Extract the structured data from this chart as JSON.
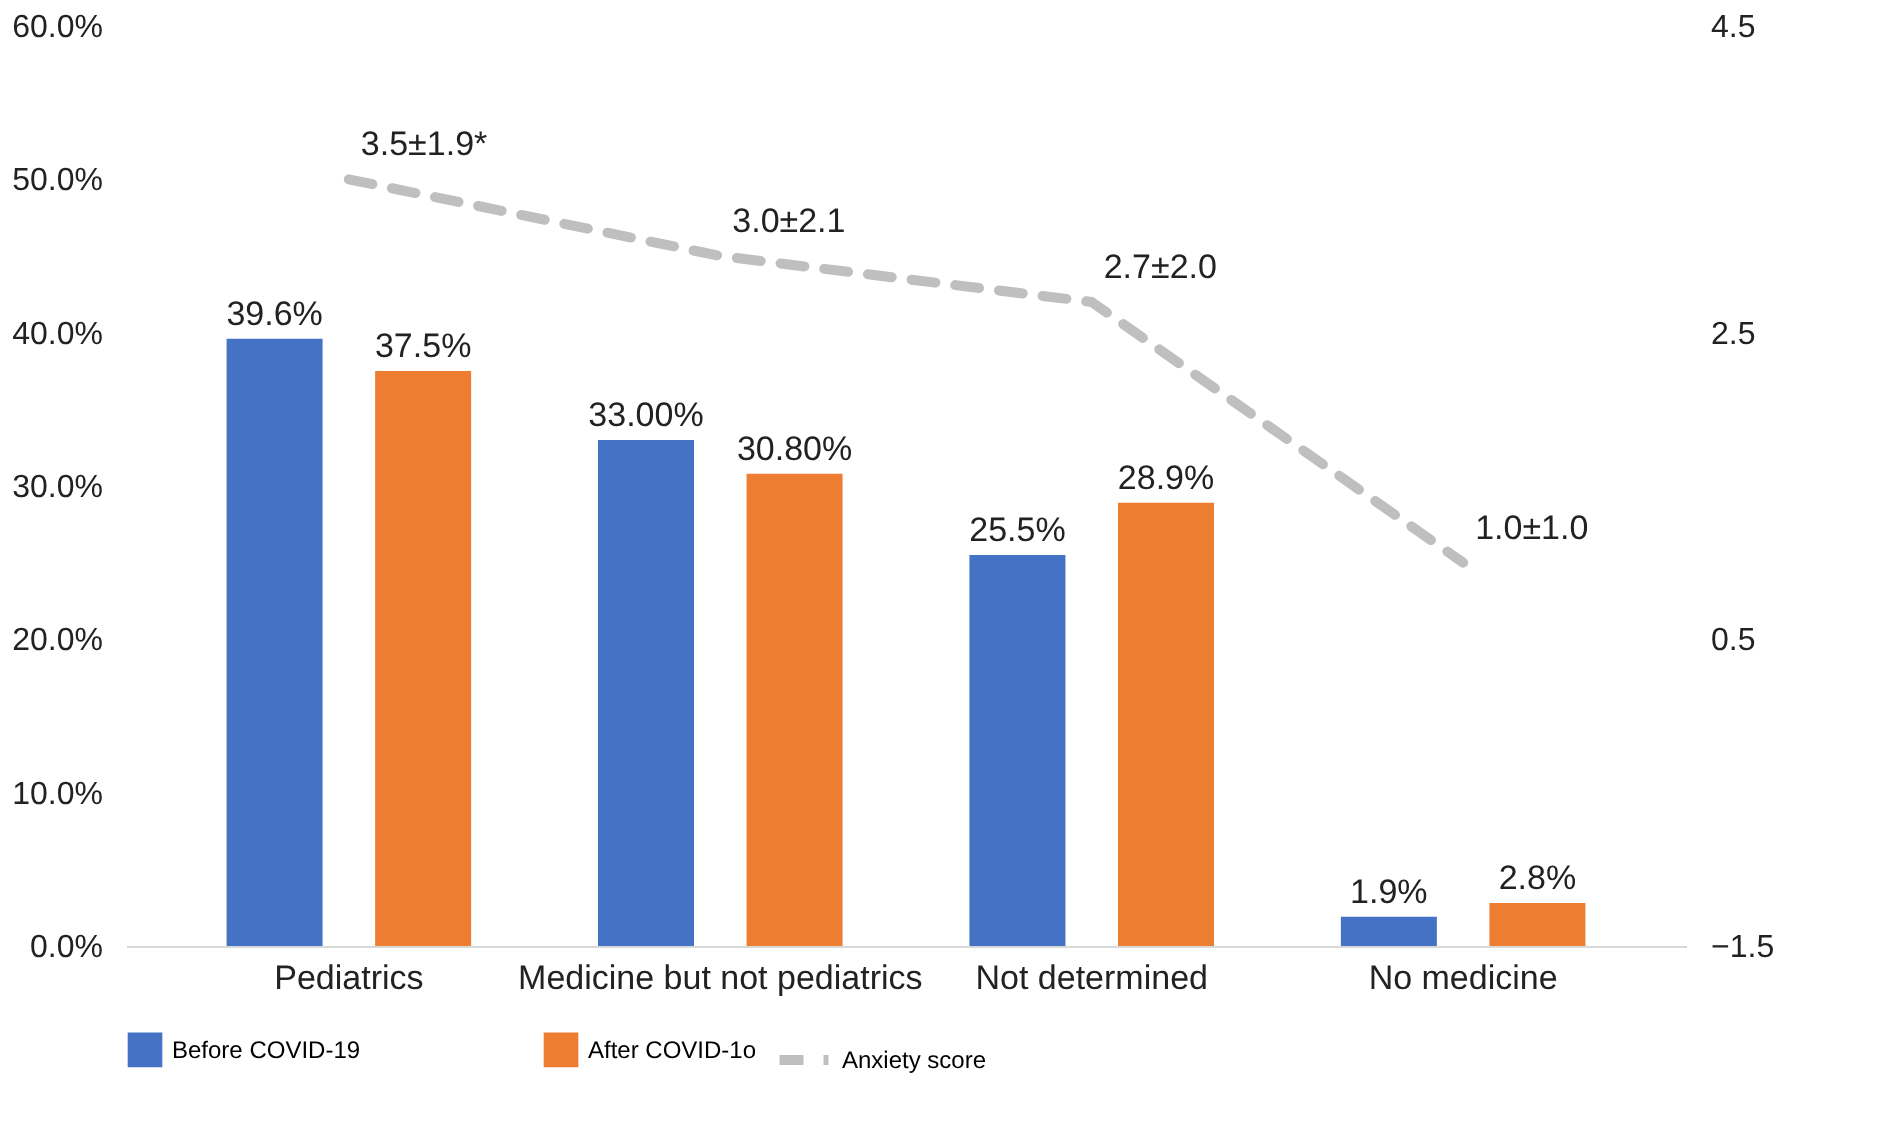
{
  "chart_data": {
    "type": "bar",
    "categories": [
      "Pediatrics",
      "Medicine but not pediatrics",
      "Not determined",
      "No medicine"
    ],
    "series": [
      {
        "name": "Before COVID-19",
        "color": "#4472c4",
        "values": [
          39.6,
          33.0,
          25.5,
          1.9
        ],
        "value_labels": [
          "39.6%",
          "33.00%",
          "25.5%",
          "1.9%"
        ]
      },
      {
        "name": "After COVID-1o",
        "color": "#ed7d31",
        "values": [
          37.5,
          30.8,
          28.9,
          2.8
        ],
        "value_labels": [
          "37.5%",
          "30.80%",
          "28.9%",
          "2.8%"
        ]
      },
      {
        "name": "Anxiety score",
        "type": "line",
        "axis": "y2",
        "color": "#bfbfbf",
        "line_style": "dashed",
        "values": [
          3.5,
          3.0,
          2.7,
          1.0
        ],
        "value_labels": [
          "3.5±1.9*",
          "3.0±2.1",
          "2.7±2.0",
          "1.0±1.0"
        ]
      }
    ],
    "ylim": [
      0,
      60
    ],
    "yticks": [
      {
        "value": 0,
        "label": "0.0%"
      },
      {
        "value": 10,
        "label": "10.0%"
      },
      {
        "value": 20,
        "label": "20.0%"
      },
      {
        "value": 30,
        "label": "30.0%"
      },
      {
        "value": 40,
        "label": "40.0%"
      },
      {
        "value": 50,
        "label": "50.0%"
      },
      {
        "value": 60,
        "label": "60.0%"
      }
    ],
    "y2lim": [
      -1.5,
      4.5
    ],
    "y2ticks": [
      {
        "value": -1.5,
        "label": "−1.5"
      },
      0.5,
      2.5,
      4.5
    ],
    "grid": false,
    "legend": "bottom",
    "marker": "none"
  }
}
